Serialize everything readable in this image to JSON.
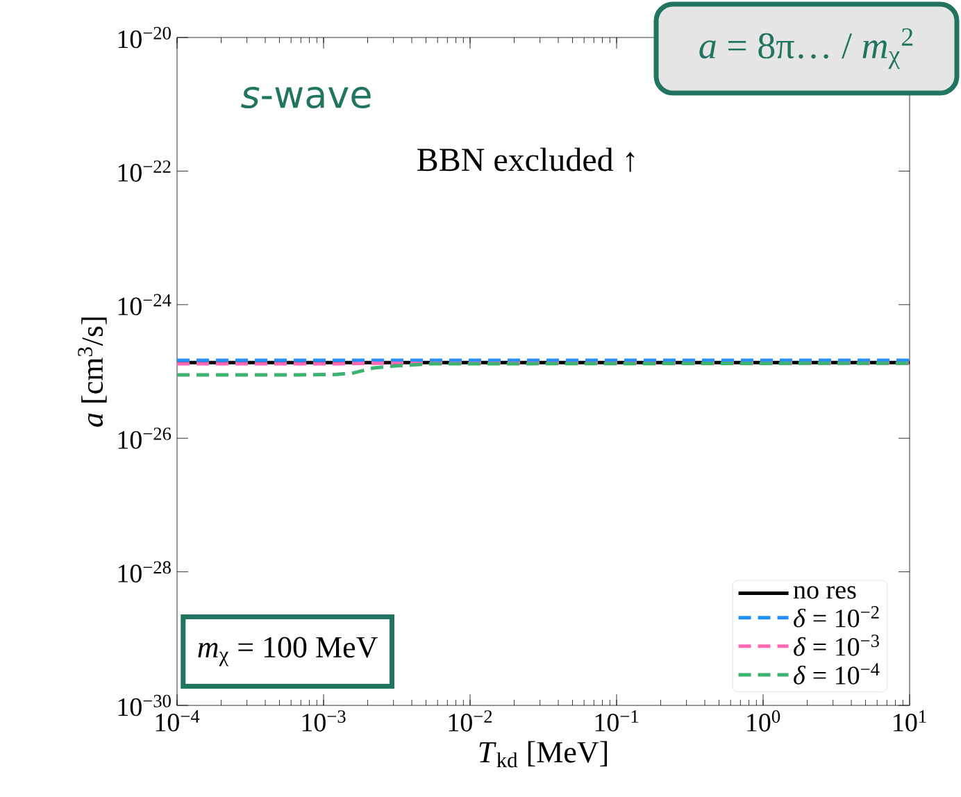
{
  "chart_data": {
    "type": "line",
    "title": "*s*-wave",
    "xlabel": "*T*$_{kd}$  [MeV]",
    "ylabel": "*a*  [cm$^{3}$/s]",
    "annotations": [
      "BBN excluded ↑",
      "*m*$_{χ}$ = 100 MeV",
      "*a* = 8π… / *m*$_{χ}$$^{2}$"
    ],
    "log": "xy",
    "legend": "bottom right",
    "xlim": [
      0.0001,
      10
    ],
    "ylim": [
      1e-30,
      1e-20
    ],
    "xticks": [
      {
        "value": 0.0001,
        "label": "10$^{−4}$"
      },
      {
        "value": 0.001,
        "label": "10$^{−3}$"
      },
      {
        "value": 0.01,
        "label": "10$^{−2}$"
      },
      {
        "value": 0.1,
        "label": "10$^{−1}$"
      },
      {
        "value": 1,
        "label": "10$^{0}$"
      },
      {
        "value": 10,
        "label": "10$^{1}$"
      }
    ],
    "yticks": [
      {
        "value": 1e-30,
        "label": "10$^{−30}$"
      },
      {
        "value": 1e-28,
        "label": "10$^{−28}$"
      },
      {
        "value": 1e-26,
        "label": "10$^{−26}$"
      },
      {
        "value": 1e-24,
        "label": "10$^{−24}$"
      },
      {
        "value": 1e-22,
        "label": "10$^{−22}$"
      },
      {
        "value": 1e-20,
        "label": "10$^{−20}$"
      }
    ],
    "series": [
      {
        "name": "no res",
        "color": "#000000",
        "line_style": "solid",
        "x": [
          0.0001,
          10
        ],
        "values": [
          1.36e-25,
          1.36e-25
        ]
      },
      {
        "name": "*δ* = 10$^{−2}$",
        "color": "#1e90ff",
        "line_style": "dashed",
        "x": [
          0.0001,
          10
        ],
        "values": [
          1.47e-25,
          1.47e-25
        ]
      },
      {
        "name": "*δ* = 10$^{−3}$",
        "color": "#ff69b4",
        "line_style": "dashed",
        "x": [
          0.0001,
          0.0012,
          0.0022,
          10
        ],
        "values": [
          1.3e-25,
          1.3e-25,
          1.33e-25,
          1.33e-25
        ]
      },
      {
        "name": "*δ* = 10$^{−4}$",
        "color": "#3cb371",
        "line_style": "dashed",
        "x": [
          0.0001,
          0.00068,
          0.0012,
          0.0016,
          0.0022,
          0.0031,
          0.0054,
          10
        ],
        "values": [
          8.9e-26,
          8.9e-26,
          9e-26,
          9.5e-26,
          1.13e-25,
          1.21e-25,
          1.3e-25,
          1.33e-25
        ]
      }
    ]
  }
}
